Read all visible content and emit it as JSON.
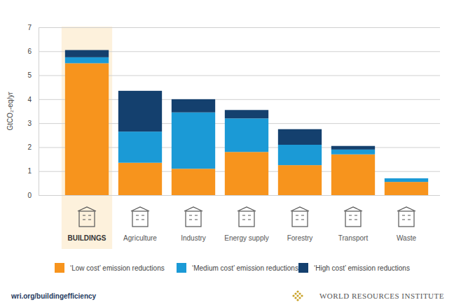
{
  "chart_data": {
    "type": "bar",
    "stacked": true,
    "grid": true,
    "legend": "bottom",
    "y_label": "GtCO₂-eq/yr",
    "categories": [
      "BUILDINGS",
      "Agriculture",
      "Industry",
      "Energy supply",
      "Forestry",
      "Transport",
      "Waste"
    ],
    "series": [
      {
        "name": "‘Low cost’ emission reductions",
        "color": "#f7941d",
        "values": [
          5.5,
          1.35,
          1.1,
          1.8,
          1.25,
          1.7,
          0.55
        ]
      },
      {
        "name": "‘Medium cost’ emission reductions",
        "color": "#1b9ad6",
        "values": [
          0.25,
          1.3,
          2.35,
          1.4,
          0.85,
          0.2,
          0.15
        ]
      },
      {
        "name": "‘High cost’ emission reductions",
        "color": "#14406e",
        "values": [
          0.3,
          1.7,
          0.55,
          0.35,
          0.65,
          0.15,
          0.0
        ]
      }
    ],
    "ylim": [
      0,
      7
    ],
    "yticks": [
      0,
      1,
      2,
      3,
      4,
      5,
      6,
      7
    ],
    "annotations": [
      "wri.org/buildingefficiency",
      "WORLD RESOURCES INSTITUTE"
    ]
  }
}
